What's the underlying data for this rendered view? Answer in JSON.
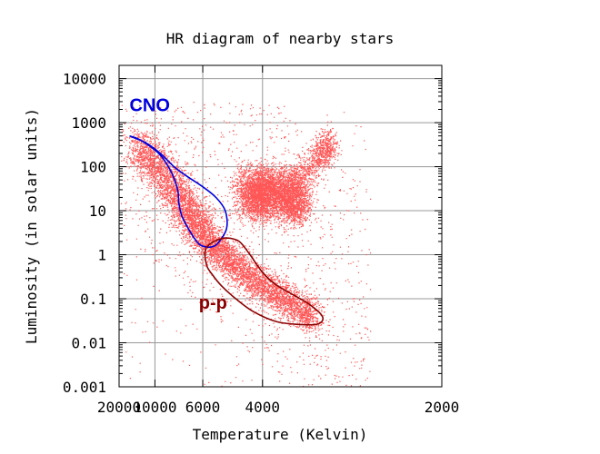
{
  "chart_data": {
    "type": "scatter",
    "title": "HR diagram of nearby stars",
    "xlabel": "Temperature (Kelvin)",
    "ylabel": "Luminosity (in solar units)",
    "x_scale": "reciprocal",
    "x_direction": "decreasing",
    "y_scale": "log",
    "xlim": [
      20000,
      2000
    ],
    "ylim": [
      0.001,
      20000
    ],
    "x_ticks": [
      20000,
      10000,
      6000,
      4000,
      2000
    ],
    "x_tick_labels": [
      "20000",
      "10000",
      "6000",
      "4000",
      "2000"
    ],
    "y_ticks": [
      0.001,
      0.01,
      0.1,
      1,
      10,
      100,
      1000,
      10000
    ],
    "y_tick_labels": [
      "0.001",
      "0.01",
      "0.1",
      "1",
      "10",
      "100",
      "1000",
      "10000"
    ],
    "grid": true,
    "point_color": "#ff5555",
    "point_clusters": [
      {
        "region": "main-sequence-upper",
        "temperature": [
          [
            14000,
            7000
          ],
          [
            6300,
            5700
          ]
        ],
        "luminosity": [
          [
            300,
            40
          ],
          [
            5,
            2
          ]
        ],
        "density": "high"
      },
      {
        "region": "main-sequence-lower",
        "temperature": [
          [
            5700,
            4300
          ],
          [
            3800,
            3100
          ]
        ],
        "luminosity": [
          [
            2,
            0.3
          ],
          [
            0.2,
            0.03
          ]
        ],
        "density": "high"
      },
      {
        "region": "red-giant-clump",
        "temperature": [
          [
            5200,
            3600
          ],
          [
            3300,
            2900
          ]
        ],
        "luminosity": [
          [
            60,
            10
          ],
          [
            300,
            10
          ]
        ],
        "density": "high"
      },
      {
        "region": "scattered",
        "temperature": [
          [
            20000,
            2500
          ]
        ],
        "luminosity": [
          [
            3000,
            0.001
          ]
        ],
        "density": "sparse"
      }
    ],
    "annotations": [
      {
        "label": "CNO",
        "color": "#0000dd",
        "label_position": [
          15500,
          1800
        ],
        "outline": [
          [
            15500,
            500
          ],
          [
            12500,
            400
          ],
          [
            9500,
            200
          ],
          [
            8200,
            80
          ],
          [
            7600,
            30
          ],
          [
            7500,
            15
          ],
          [
            7300,
            8
          ],
          [
            7000,
            5
          ],
          [
            6400,
            2.2
          ],
          [
            6050,
            1.6
          ],
          [
            5600,
            1.5
          ],
          [
            5300,
            1.9
          ],
          [
            5000,
            4
          ],
          [
            5050,
            10
          ],
          [
            5400,
            20
          ],
          [
            6000,
            35
          ],
          [
            6900,
            60
          ],
          [
            7900,
            100
          ],
          [
            9300,
            200
          ],
          [
            11500,
            350
          ],
          [
            14000,
            450
          ],
          [
            15500,
            500
          ]
        ]
      },
      {
        "label": "p-p",
        "color": "#8b0000",
        "label_position": [
          6200,
          0.06
        ],
        "outline": [
          [
            5900,
            1.0
          ],
          [
            5800,
            0.55
          ],
          [
            5550,
            0.35
          ],
          [
            5200,
            0.2
          ],
          [
            4700,
            0.1
          ],
          [
            4200,
            0.05
          ],
          [
            3700,
            0.03
          ],
          [
            3300,
            0.026
          ],
          [
            3050,
            0.027
          ],
          [
            3000,
            0.04
          ],
          [
            3200,
            0.08
          ],
          [
            3700,
            0.2
          ],
          [
            4000,
            0.4
          ],
          [
            4300,
            1.0
          ],
          [
            4600,
            2.0
          ],
          [
            5000,
            2.4
          ],
          [
            5400,
            2.1
          ],
          [
            5800,
            1.5
          ],
          [
            5900,
            1.0
          ]
        ]
      }
    ]
  }
}
